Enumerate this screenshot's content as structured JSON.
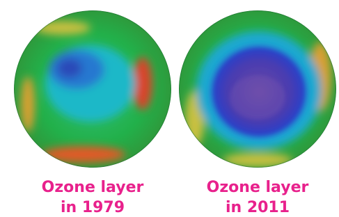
{
  "panels": [
    {
      "caption": [
        "Ozone layer",
        "in 1979"
      ]
    },
    {
      "caption": [
        "Ozone layer",
        "in 2011"
      ]
    }
  ]
}
